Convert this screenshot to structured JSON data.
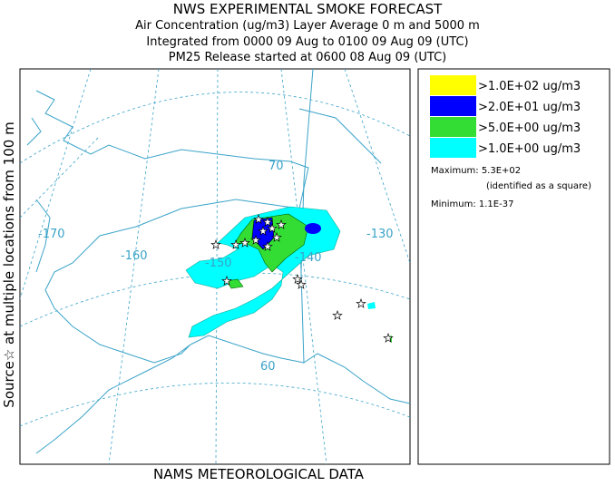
{
  "header": {
    "lines": [
      "NWS EXPERIMENTAL SMOKE FORECAST",
      "Air Concentration (ug/m3) Layer Average    0 m and  5000 m",
      "Integrated from 0000 09 Aug to 0100 09 Aug 09 (UTC)",
      "PM25 Release started at 0600 08 Aug 09 (UTC)"
    ]
  },
  "side_label": "Source☆ at multiple locations   from   100 m",
  "footer": "NAMS METEOROLOGICAL DATA",
  "legend": {
    "items": [
      {
        "label": ">1.0E+02 ug/m3",
        "color": "#ffff00"
      },
      {
        "label": ">2.0E+01 ug/m3",
        "color": "#0000ff"
      },
      {
        "label": ">5.0E+00 ug/m3",
        "color": "#33dd33"
      },
      {
        "label": ">1.0E+00 ug/m3",
        "color": "#00ffff"
      }
    ],
    "maximum": "Maximum: 5.3E+02",
    "maximum_note": "(identified as a square)",
    "minimum": "Minimum: 1.1E-37"
  },
  "map": {
    "labels": [
      "-170",
      "-160",
      "-150",
      "-140",
      "-130",
      "70",
      "60"
    ]
  }
}
